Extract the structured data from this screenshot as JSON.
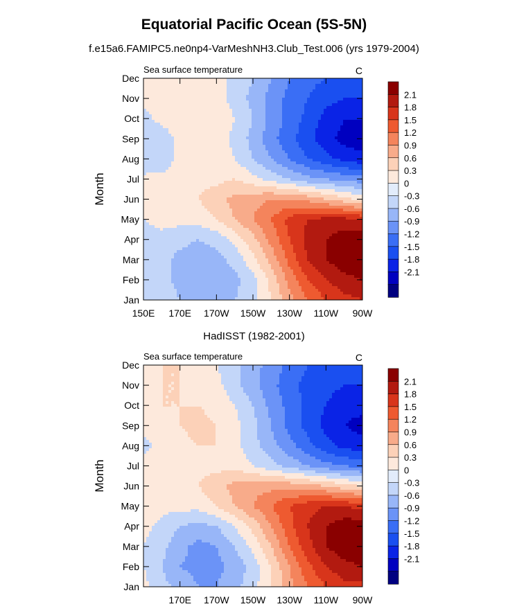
{
  "title": "Equatorial Pacific Ocean (5S-5N)",
  "subtitle": "f.e15a6.FAMIPC5.ne0np4-VarMeshNH3.Club_Test.006 (yrs 1979-2004)",
  "colors": {
    "scale": [
      "#000080",
      "#0000c0",
      "#0a23e6",
      "#1a4ff0",
      "#3a6ef5",
      "#6b93f7",
      "#98b6f8",
      "#c3d6f9",
      "#e2ecfb",
      "#fde9dc",
      "#fcd1b8",
      "#f8ab8a",
      "#f4845c",
      "#ee5a30",
      "#d8351b",
      "#b21a10",
      "#8a0000"
    ]
  },
  "chart_data": [
    {
      "type": "heatmap",
      "panel_title": "",
      "left_label": "Sea surface temperature",
      "right_label": "C",
      "ylabel": "Month",
      "y_ticklabels": [
        "Jan",
        "Feb",
        "Mar",
        "Apr",
        "May",
        "Jun",
        "Jul",
        "Aug",
        "Sep",
        "Oct",
        "Nov",
        "Dec"
      ],
      "x_ticklabels": [
        "150E",
        "170E",
        "170W",
        "150W",
        "130W",
        "110W",
        "90W"
      ],
      "x_tick_lon": [
        150,
        170,
        190,
        210,
        230,
        250,
        270
      ],
      "xlim": [
        150,
        270
      ],
      "ylim": [
        1,
        12
      ],
      "colorbar_levels": [
        "2.1",
        "1.8",
        "1.5",
        "1.2",
        "0.9",
        "0.6",
        "0.3",
        "0",
        "-0.3",
        "-0.6",
        "-0.9",
        "-1.2",
        "-1.5",
        "-1.8",
        "-2.1"
      ],
      "field": {
        "lon": [
          150,
          160,
          170,
          180,
          190,
          200,
          210,
          220,
          230,
          240,
          250,
          260,
          270
        ],
        "month": [
          1,
          2,
          3,
          4,
          5,
          6,
          7,
          8,
          9,
          10,
          11,
          12
        ],
        "values": [
          [
            0.0,
            -0.1,
            -0.3,
            -0.4,
            -0.4,
            -0.3,
            -0.1,
            0.3,
            0.8,
            1.2,
            1.5,
            1.7,
            1.8
          ],
          [
            -0.1,
            -0.2,
            -0.4,
            -0.5,
            -0.5,
            -0.4,
            -0.1,
            0.4,
            1.0,
            1.5,
            1.8,
            2.0,
            2.1
          ],
          [
            -0.1,
            -0.2,
            -0.4,
            -0.5,
            -0.4,
            -0.2,
            0.2,
            0.7,
            1.3,
            1.8,
            2.1,
            2.3,
            2.4
          ],
          [
            -0.1,
            -0.1,
            -0.2,
            -0.3,
            -0.2,
            0.1,
            0.5,
            1.0,
            1.5,
            1.9,
            2.1,
            2.3,
            2.3
          ],
          [
            0.0,
            0.1,
            0.1,
            0.1,
            0.3,
            0.6,
            0.9,
            1.2,
            1.6,
            1.8,
            1.9,
            1.9,
            1.8
          ],
          [
            0.1,
            0.2,
            0.2,
            0.3,
            0.5,
            0.7,
            0.8,
            0.9,
            0.9,
            0.8,
            0.6,
            0.4,
            0.2
          ],
          [
            0.1,
            0.1,
            0.1,
            0.2,
            0.2,
            0.3,
            0.1,
            -0.1,
            -0.3,
            -0.5,
            -0.6,
            -0.7,
            -0.8
          ],
          [
            -0.3,
            -0.2,
            0.1,
            0.2,
            0.2,
            0.0,
            -0.3,
            -0.6,
            -0.9,
            -1.2,
            -1.4,
            -1.6,
            -1.7
          ],
          [
            -0.3,
            -0.2,
            0.1,
            0.2,
            0.2,
            -0.1,
            -0.4,
            -0.8,
            -1.1,
            -1.4,
            -1.7,
            -1.9,
            -2.0
          ],
          [
            -0.1,
            0.1,
            0.2,
            0.2,
            0.2,
            0.0,
            -0.3,
            -0.7,
            -1.0,
            -1.3,
            -1.6,
            -1.8,
            -1.8
          ],
          [
            0.1,
            0.2,
            0.2,
            0.2,
            0.1,
            -0.1,
            -0.4,
            -0.7,
            -1.0,
            -1.2,
            -1.4,
            -1.5,
            -1.5
          ],
          [
            0.1,
            0.2,
            0.2,
            0.2,
            0.1,
            -0.1,
            -0.3,
            -0.6,
            -0.9,
            -1.1,
            -1.2,
            -1.3,
            -1.3
          ]
        ]
      }
    },
    {
      "type": "heatmap",
      "panel_title": "HadISST (1982-2001)",
      "left_label": "Sea surface temperature",
      "right_label": "C",
      "ylabel": "Month",
      "y_ticklabels": [
        "Jan",
        "Feb",
        "Mar",
        "Apr",
        "May",
        "Jun",
        "Jul",
        "Aug",
        "Sep",
        "Oct",
        "Nov",
        "Dec"
      ],
      "x_ticklabels": [
        "170E",
        "170W",
        "150W",
        "130W",
        "110W",
        "90W"
      ],
      "x_tick_lon": [
        170,
        190,
        210,
        230,
        250,
        270
      ],
      "xlim": [
        150,
        270
      ],
      "ylim": [
        1,
        12
      ],
      "colorbar_levels": [
        "2.1",
        "1.8",
        "1.5",
        "1.2",
        "0.9",
        "0.6",
        "0.3",
        "0",
        "-0.3",
        "-0.6",
        "-0.9",
        "-1.2",
        "-1.5",
        "-1.8",
        "-2.1"
      ],
      "field": {
        "lon": [
          150,
          160,
          170,
          180,
          190,
          200,
          210,
          220,
          230,
          240,
          250,
          260,
          270
        ],
        "month": [
          1,
          2,
          3,
          4,
          5,
          6,
          7,
          8,
          9,
          10,
          11,
          12
        ],
        "values": [
          [
            0.1,
            -0.2,
            -0.4,
            -0.6,
            -0.6,
            -0.4,
            -0.1,
            0.3,
            0.8,
            1.2,
            1.5,
            1.7,
            1.7
          ],
          [
            0.0,
            -0.3,
            -0.6,
            -0.7,
            -0.7,
            -0.5,
            -0.2,
            0.3,
            0.9,
            1.4,
            1.8,
            2.0,
            2.1
          ],
          [
            0.0,
            -0.2,
            -0.5,
            -0.7,
            -0.6,
            -0.3,
            0.1,
            0.6,
            1.2,
            1.7,
            2.1,
            2.3,
            2.4
          ],
          [
            0.1,
            -0.1,
            -0.3,
            -0.4,
            -0.3,
            0.0,
            0.4,
            0.9,
            1.4,
            1.8,
            2.1,
            2.3,
            2.3
          ],
          [
            0.2,
            0.1,
            0.1,
            0.1,
            0.3,
            0.6,
            0.9,
            1.2,
            1.5,
            1.7,
            1.8,
            1.8,
            1.7
          ],
          [
            0.2,
            0.2,
            0.3,
            0.3,
            0.5,
            0.7,
            0.8,
            0.8,
            0.8,
            0.7,
            0.6,
            0.4,
            0.3
          ],
          [
            0.1,
            0.2,
            0.2,
            0.2,
            0.2,
            0.2,
            0.0,
            -0.2,
            -0.4,
            -0.6,
            -0.8,
            -0.9,
            -1.0
          ],
          [
            -0.1,
            0.1,
            0.2,
            0.3,
            0.3,
            0.1,
            -0.2,
            -0.5,
            -0.8,
            -1.1,
            -1.4,
            -1.6,
            -1.7
          ],
          [
            0.1,
            0.2,
            0.3,
            0.4,
            0.3,
            0.1,
            -0.2,
            -0.6,
            -1.0,
            -1.3,
            -1.6,
            -1.8,
            -1.9
          ],
          [
            0.2,
            0.3,
            0.3,
            0.3,
            0.2,
            0.0,
            -0.3,
            -0.7,
            -1.0,
            -1.3,
            -1.5,
            -1.7,
            -1.7
          ],
          [
            0.2,
            0.3,
            0.3,
            0.2,
            0.1,
            -0.2,
            -0.5,
            -0.8,
            -1.1,
            -1.3,
            -1.4,
            -1.5,
            -1.5
          ],
          [
            0.2,
            0.3,
            0.3,
            0.2,
            0.0,
            -0.2,
            -0.5,
            -0.7,
            -1.0,
            -1.2,
            -1.3,
            -1.3,
            -1.2
          ]
        ]
      }
    }
  ]
}
